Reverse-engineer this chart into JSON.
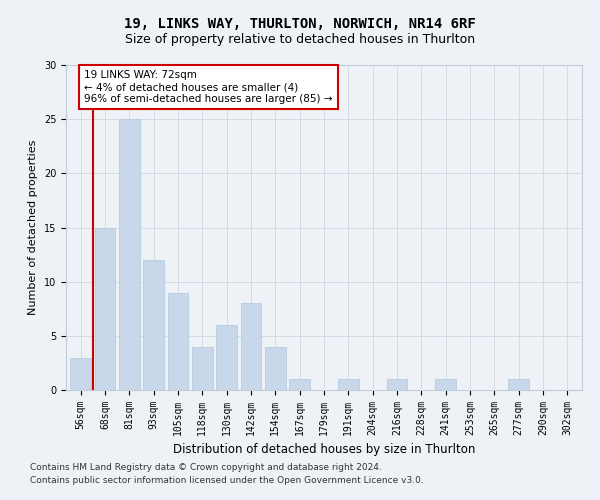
{
  "title1": "19, LINKS WAY, THURLTON, NORWICH, NR14 6RF",
  "title2": "Size of property relative to detached houses in Thurlton",
  "xlabel": "Distribution of detached houses by size in Thurlton",
  "ylabel": "Number of detached properties",
  "categories": [
    "56sqm",
    "68sqm",
    "81sqm",
    "93sqm",
    "105sqm",
    "118sqm",
    "130sqm",
    "142sqm",
    "154sqm",
    "167sqm",
    "179sqm",
    "191sqm",
    "204sqm",
    "216sqm",
    "228sqm",
    "241sqm",
    "253sqm",
    "265sqm",
    "277sqm",
    "290sqm",
    "302sqm"
  ],
  "values": [
    3,
    15,
    25,
    12,
    9,
    4,
    6,
    8,
    4,
    1,
    0,
    1,
    0,
    1,
    0,
    1,
    0,
    0,
    1,
    0,
    0
  ],
  "bar_color": "#c8d8ea",
  "bar_edge_color": "#b0c8dc",
  "vline_x": 0.5,
  "vline_color": "#cc0000",
  "annotation_line1": "19 LINKS WAY: 72sqm",
  "annotation_line2": "← 4% of detached houses are smaller (4)",
  "annotation_line3": "96% of semi-detached houses are larger (85) →",
  "annotation_box_color": "#ffffff",
  "annotation_box_edge": "#cc0000",
  "ylim": [
    0,
    30
  ],
  "yticks": [
    0,
    5,
    10,
    15,
    20,
    25,
    30
  ],
  "footer1": "Contains HM Land Registry data © Crown copyright and database right 2024.",
  "footer2": "Contains public sector information licensed under the Open Government Licence v3.0.",
  "background_color": "#eef2f7",
  "plot_background": "#eef2f7",
  "title1_fontsize": 10,
  "title2_fontsize": 9,
  "xlabel_fontsize": 8.5,
  "ylabel_fontsize": 8,
  "tick_fontsize": 7,
  "footer_fontsize": 6.5,
  "annotation_fontsize": 7.5
}
